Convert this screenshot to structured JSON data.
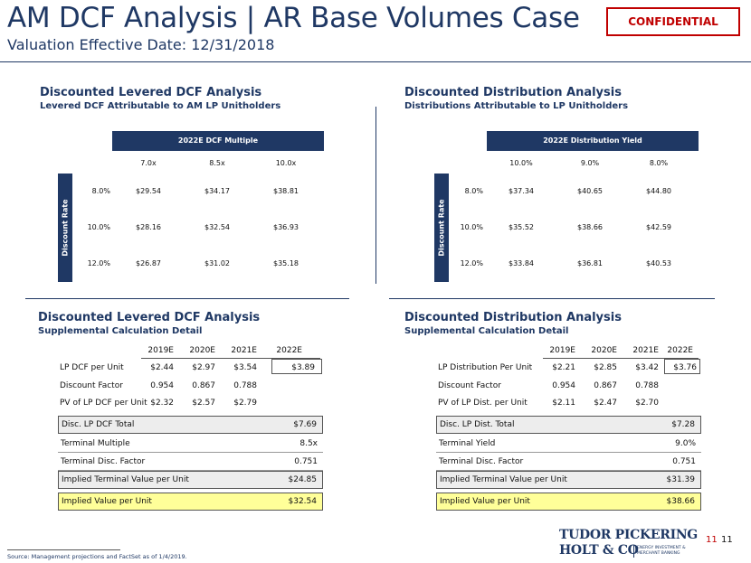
{
  "header": {
    "title": "AM DCF Analysis | AR Base Volumes Case",
    "subtitle": "Valuation Effective Date: 12/31/2018",
    "badge": "CONFIDENTIAL"
  },
  "left_sensitivity": {
    "title": "Discounted Levered DCF Analysis",
    "subtitle": "Levered DCF Attributable to AM LP Unitholders",
    "header": "2022E DCF Multiple",
    "side_label": "Discount Rate",
    "columns": [
      "7.0x",
      "8.5x",
      "10.0x"
    ],
    "rows": [
      {
        "rate": "8.0%",
        "values": [
          "$29.54",
          "$34.17",
          "$38.81"
        ]
      },
      {
        "rate": "10.0%",
        "values": [
          "$28.16",
          "$32.54",
          "$36.93"
        ]
      },
      {
        "rate": "12.0%",
        "values": [
          "$26.87",
          "$31.02",
          "$35.18"
        ]
      }
    ]
  },
  "right_sensitivity": {
    "title": "Discounted Distribution Analysis",
    "subtitle": "Distributions Attributable to LP Unitholders",
    "header": "2022E Distribution Yield",
    "side_label": "Discount Rate",
    "columns": [
      "10.0%",
      "9.0%",
      "8.0%"
    ],
    "rows": [
      {
        "rate": "8.0%",
        "values": [
          "$37.34",
          "$40.65",
          "$44.80"
        ]
      },
      {
        "rate": "10.0%",
        "values": [
          "$35.52",
          "$38.66",
          "$42.59"
        ]
      },
      {
        "rate": "12.0%",
        "values": [
          "$33.84",
          "$36.81",
          "$40.53"
        ]
      }
    ]
  },
  "left_detail": {
    "title": "Discounted Levered DCF Analysis",
    "subtitle": "Supplemental Calculation Detail",
    "years": [
      "2019E",
      "2020E",
      "2021E",
      "2022E"
    ],
    "rows": [
      {
        "label": "LP DCF per Unit",
        "values": [
          "$2.44",
          "$2.97",
          "$3.54",
          "$3.89"
        ]
      },
      {
        "label": "Discount Factor",
        "values": [
          "0.954",
          "0.867",
          "0.788",
          ""
        ]
      },
      {
        "label": "PV of LP DCF per Unit",
        "values": [
          "$2.32",
          "$2.57",
          "$2.79",
          ""
        ]
      }
    ],
    "total": {
      "label": "Disc. LP DCF Total",
      "value": "$7.69"
    },
    "terminal_1": {
      "label": "Terminal Multiple",
      "value": "8.5x"
    },
    "terminal_2": {
      "label": "Terminal Disc. Factor",
      "value": "0.751"
    },
    "implied_tv": {
      "label": "Implied Terminal Value per Unit",
      "value": "$24.85"
    },
    "implied_value": {
      "label": "Implied Value per Unit",
      "value": "$32.54"
    }
  },
  "right_detail": {
    "title": "Discounted Distribution Analysis",
    "subtitle": "Supplemental Calculation Detail",
    "years": [
      "2019E",
      "2020E",
      "2021E",
      "2022E"
    ],
    "rows": [
      {
        "label": "LP Distribution Per Unit",
        "values": [
          "$2.21",
          "$2.85",
          "$3.42",
          "$3.76"
        ]
      },
      {
        "label": "Discount Factor",
        "values": [
          "0.954",
          "0.867",
          "0.788",
          ""
        ]
      },
      {
        "label": "PV of LP Dist. per Unit",
        "values": [
          "$2.11",
          "$2.47",
          "$2.70",
          ""
        ]
      }
    ],
    "total": {
      "label": "Disc. LP Dist. Total",
      "value": "$7.28"
    },
    "terminal_1": {
      "label": "Terminal Yield",
      "value": "9.0%"
    },
    "terminal_2": {
      "label": "Terminal Disc. Factor",
      "value": "0.751"
    },
    "implied_tv": {
      "label": "Implied Terminal Value per Unit",
      "value": "$31.39"
    },
    "implied_value": {
      "label": "Implied Value per Unit",
      "value": "$38.66"
    }
  },
  "footer": {
    "source": "Source: Management projections and FactSet as of 1/4/2019.",
    "logo_line1": "TUDOR PICKERING",
    "logo_line2": "HOLT & CO",
    "logo_tag1": "ENERGY INVESTMENT &",
    "logo_tag2": "MERCHANT BANKING",
    "page_red": "11",
    "page_black": "11"
  }
}
